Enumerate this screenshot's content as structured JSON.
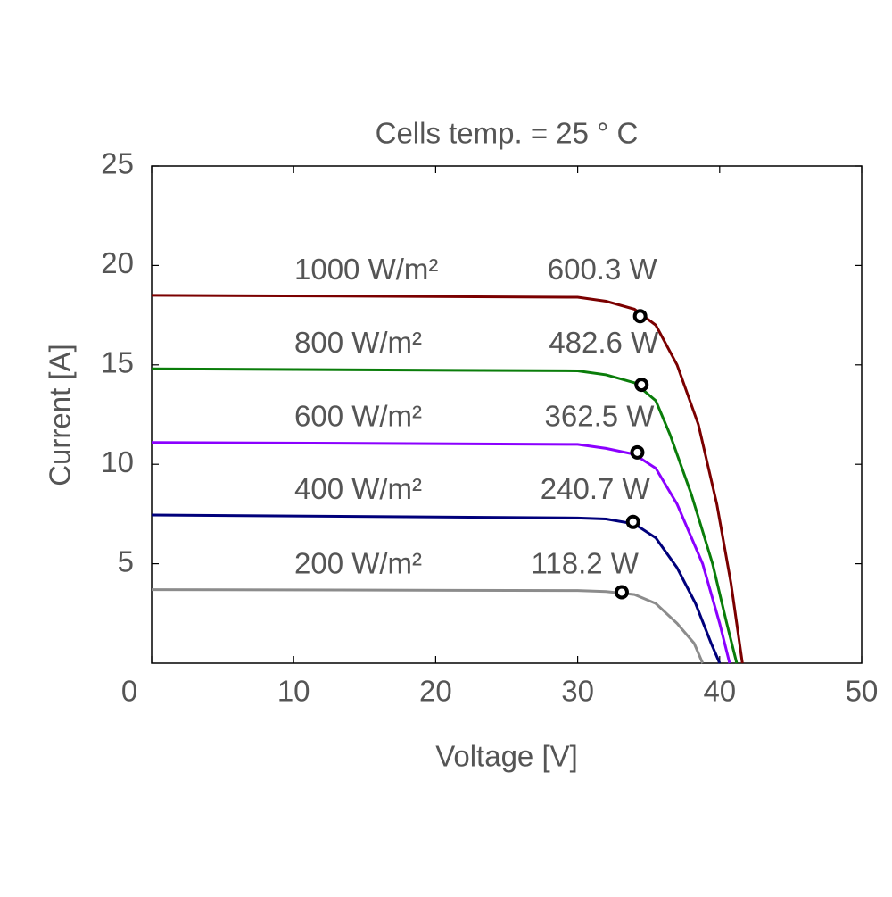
{
  "chart_data": {
    "type": "line",
    "title": "Cells temp. = 25 ° C",
    "x_label": "Voltage [V]",
    "y_label": "Current [A]",
    "xlim": [
      0,
      50
    ],
    "xticks": [
      0,
      10,
      20,
      30,
      40,
      50
    ],
    "ylim": [
      0,
      25
    ],
    "yticks": [
      5,
      10,
      15,
      20,
      25
    ],
    "series": [
      {
        "name": "1000 W/m²",
        "color": "#7b0000",
        "power_label": "600.3 W",
        "mpp_x": 34.4,
        "mpp_y": 17.45,
        "x": [
          0,
          30,
          32,
          34,
          35.5,
          37,
          38.5,
          39.8,
          40.8,
          41.6
        ],
        "values": [
          18.5,
          18.4,
          18.2,
          17.8,
          17.0,
          15.0,
          12.0,
          8.0,
          4.0,
          0
        ]
      },
      {
        "name": "800 W/m²",
        "color": "#0a7d0a",
        "power_label": "482.6 W",
        "mpp_x": 34.5,
        "mpp_y": 14.0,
        "x": [
          0,
          30,
          32,
          34,
          35.5,
          36.5,
          38,
          39.5,
          40.5,
          41.2
        ],
        "values": [
          14.8,
          14.7,
          14.5,
          14.1,
          13.2,
          11.5,
          8.5,
          5.0,
          2.0,
          0
        ]
      },
      {
        "name": "600 W/m²",
        "color": "#8b00ff",
        "power_label": "362.5 W",
        "mpp_x": 34.2,
        "mpp_y": 10.6,
        "x": [
          0,
          30,
          32,
          34,
          35.5,
          37,
          38.8,
          40,
          40.7
        ],
        "values": [
          11.1,
          11.0,
          10.8,
          10.5,
          9.8,
          8.0,
          5.0,
          2.0,
          0
        ]
      },
      {
        "name": "400 W/m²",
        "color": "#00007b",
        "power_label": "240.7 W",
        "mpp_x": 33.9,
        "mpp_y": 7.1,
        "x": [
          0,
          30,
          32,
          34,
          35.5,
          37,
          38.3,
          39.4,
          40
        ],
        "values": [
          7.45,
          7.3,
          7.25,
          7.0,
          6.3,
          4.8,
          3.0,
          1.0,
          0
        ]
      },
      {
        "name": "200 W/m²",
        "color": "#8c8c8c",
        "power_label": "118.2 W",
        "mpp_x": 33.1,
        "mpp_y": 3.57,
        "x": [
          0,
          30,
          32,
          34,
          35.5,
          37,
          38.2,
          38.8
        ],
        "values": [
          3.7,
          3.65,
          3.6,
          3.45,
          3.0,
          2.0,
          1.0,
          0
        ]
      }
    ]
  }
}
